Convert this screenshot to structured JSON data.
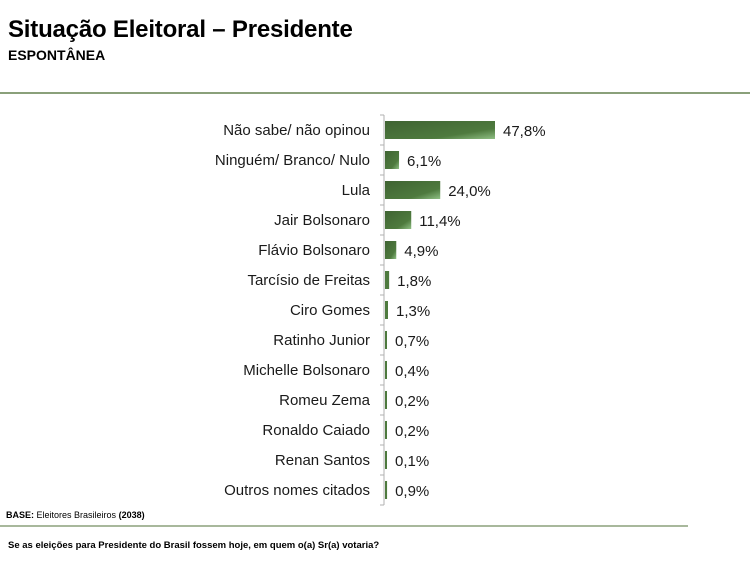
{
  "header": {
    "title": "Situação Eleitoral – Presidente",
    "subtitle": "ESPONTÂNEA"
  },
  "footer": {
    "base_label": "BASE:",
    "base_text": "Eleitores Brasileiros",
    "base_count": "(2038)",
    "question": "Se as eleições para Presidente do Brasil fossem hoje, em quem o(a) Sr(a) votaria?"
  },
  "colors": {
    "bar_dark": "#3f6332",
    "bar_mid": "#4e7a3e",
    "bar_light": "#8fbf84",
    "axis": "#b0b0b0",
    "divider": "#8aa07a"
  },
  "chart_data": {
    "type": "bar",
    "orientation": "horizontal",
    "title": "Situação Eleitoral – Presidente",
    "subtitle": "ESPONTÂNEA",
    "xlabel": "",
    "ylabel": "",
    "xlim": [
      0,
      47.8
    ],
    "grid": false,
    "legend": "none",
    "categories": [
      "Não sabe/ não opinou",
      "Ninguém/ Branco/ Nulo",
      "Lula",
      "Jair Bolsonaro",
      "Flávio Bolsonaro",
      "Tarcísio de Freitas",
      "Ciro Gomes",
      "Ratinho Junior",
      "Michelle Bolsonaro",
      "Romeu Zema",
      "Ronaldo Caiado",
      "Renan Santos",
      "Outros nomes citados"
    ],
    "values": [
      47.8,
      6.1,
      24.0,
      11.4,
      4.9,
      1.8,
      1.3,
      0.7,
      0.4,
      0.2,
      0.2,
      0.1,
      0.9
    ],
    "value_labels": [
      "47,8%",
      "6,1%",
      "24,0%",
      "11,4%",
      "4,9%",
      "1,8%",
      "1,3%",
      "0,7%",
      "0,4%",
      "0,2%",
      "0,2%",
      "0,1%",
      "0,9%"
    ]
  }
}
